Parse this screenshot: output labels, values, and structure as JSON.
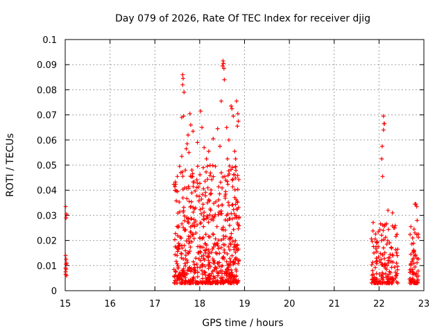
{
  "chart_data": {
    "type": "scatter",
    "title": "Day 079 of 2026, Rate Of TEC Index for receiver djig",
    "xlabel": "GPS time / hours",
    "ylabel": "ROTI / TECUs",
    "xlim": [
      15,
      23
    ],
    "ylim": [
      0,
      0.1
    ],
    "xticks": [
      15,
      16,
      17,
      18,
      19,
      20,
      21,
      22,
      23
    ],
    "yticks": [
      0,
      0.01,
      0.02,
      0.03,
      0.04,
      0.05,
      0.06,
      0.07,
      0.08,
      0.09,
      0.1
    ],
    "xtick_labels": [
      "15",
      "16",
      "17",
      "18",
      "19",
      "20",
      "21",
      "22",
      "23"
    ],
    "ytick_labels": [
      "0",
      "0.01",
      "0.02",
      "0.03",
      "0.04",
      "0.05",
      "0.06",
      "0.07",
      "0.08",
      "0.09",
      "0.1"
    ],
    "grid": true,
    "marker": "+",
    "color": "#ff0000",
    "series": [
      {
        "name": "ROTI",
        "points": [
          [
            15.01,
            0.0335
          ],
          [
            15.02,
            0.029
          ],
          [
            15.03,
            0.0305
          ],
          [
            15.01,
            0.014
          ],
          [
            15.02,
            0.0125
          ],
          [
            15.03,
            0.011
          ],
          [
            15.01,
            0.009
          ],
          [
            15.02,
            0.0085
          ],
          [
            15.01,
            0.0065
          ],
          [
            15.03,
            0.006
          ],
          [
            15.02,
            0.0105
          ],
          [
            15.01,
            0.0075
          ],
          [
            17.62,
            0.086
          ],
          [
            17.63,
            0.0845
          ],
          [
            17.62,
            0.082
          ],
          [
            17.65,
            0.079
          ],
          [
            17.64,
            0.0695
          ],
          [
            17.6,
            0.069
          ],
          [
            17.78,
            0.0705
          ],
          [
            17.8,
            0.066
          ],
          [
            17.74,
            0.062
          ],
          [
            17.72,
            0.0585
          ],
          [
            17.7,
            0.0565
          ],
          [
            17.76,
            0.055
          ],
          [
            17.6,
            0.0535
          ],
          [
            17.55,
            0.0495
          ],
          [
            17.58,
            0.047
          ],
          [
            17.5,
            0.0455
          ],
          [
            17.68,
            0.048
          ],
          [
            17.85,
            0.0635
          ],
          [
            17.95,
            0.059
          ],
          [
            18.02,
            0.0715
          ],
          [
            18.05,
            0.065
          ],
          [
            18.1,
            0.057
          ],
          [
            18.15,
            0.0525
          ],
          [
            18.08,
            0.049
          ],
          [
            18.2,
            0.0555
          ],
          [
            18.3,
            0.0605
          ],
          [
            18.35,
            0.0495
          ],
          [
            18.4,
            0.0645
          ],
          [
            18.45,
            0.0575
          ],
          [
            18.52,
            0.0915
          ],
          [
            18.53,
            0.0905
          ],
          [
            18.51,
            0.0895
          ],
          [
            18.54,
            0.0885
          ],
          [
            18.55,
            0.084
          ],
          [
            18.48,
            0.0755
          ],
          [
            18.6,
            0.065
          ],
          [
            18.65,
            0.06
          ],
          [
            18.7,
            0.0735
          ],
          [
            18.72,
            0.0725
          ],
          [
            18.75,
            0.0695
          ],
          [
            18.82,
            0.0755
          ],
          [
            18.85,
            0.0705
          ],
          [
            18.86,
            0.0675
          ],
          [
            18.84,
            0.0655
          ],
          [
            18.78,
            0.0555
          ],
          [
            18.8,
            0.0525
          ],
          [
            18.62,
            0.0525
          ],
          [
            18.66,
            0.0465
          ],
          [
            18.58,
            0.044
          ],
          [
            22.1,
            0.0695
          ],
          [
            22.11,
            0.0665
          ],
          [
            22.12,
            0.0665
          ],
          [
            22.1,
            0.064
          ],
          [
            22.07,
            0.0575
          ],
          [
            22.06,
            0.0525
          ],
          [
            22.08,
            0.0455
          ],
          [
            22.2,
            0.032
          ],
          [
            22.3,
            0.031
          ],
          [
            22.35,
            0.025
          ],
          [
            22.4,
            0.0225
          ],
          [
            22.8,
            0.0345
          ],
          [
            22.82,
            0.0345
          ],
          [
            22.84,
            0.0335
          ],
          [
            22.85,
            0.028
          ],
          [
            22.78,
            0.0245
          ],
          [
            22.8,
            0.023
          ],
          [
            22.75,
            0.021
          ]
        ]
      }
    ]
  }
}
